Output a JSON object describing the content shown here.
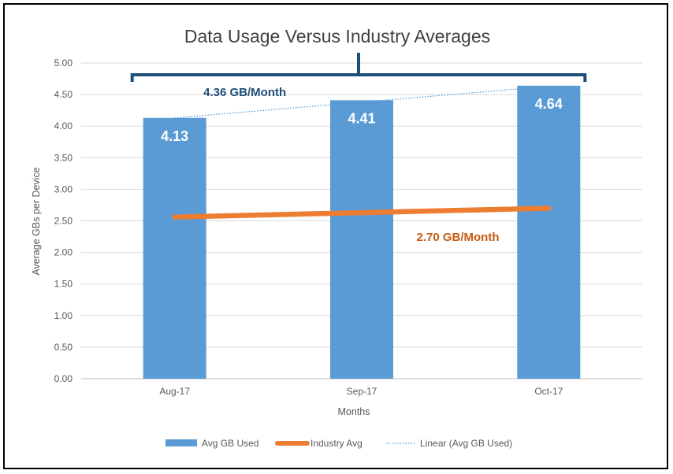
{
  "chart_data": {
    "type": "bar",
    "title": "Data Usage Versus Industry Averages",
    "xlabel": "Months",
    "ylabel": "Average GBs per Device",
    "categories": [
      "Aug-17",
      "Sep-17",
      "Oct-17"
    ],
    "ylim": [
      0,
      5
    ],
    "yticks": [
      "0.00",
      "0.50",
      "1.00",
      "1.50",
      "2.00",
      "2.50",
      "3.00",
      "3.50",
      "4.00",
      "4.50",
      "5.00"
    ],
    "grid": true,
    "legend_position": "bottom",
    "series": [
      {
        "name": "Avg GB Used",
        "type": "bar",
        "values": [
          4.13,
          4.41,
          4.64
        ],
        "data_labels": [
          "4.13",
          "4.41",
          "4.64"
        ],
        "color": "#5b9bd5"
      },
      {
        "name": "Industry Avg",
        "type": "line",
        "values": [
          2.56,
          2.63,
          2.7
        ],
        "color": "#ed7d31"
      },
      {
        "name": "Linear (Avg GB Used)",
        "type": "trendline",
        "values": [
          4.13,
          4.38,
          4.63
        ],
        "color": "#5b9bd5",
        "style": "dotted"
      }
    ],
    "annotations": [
      {
        "text": "4.36 GB/Month",
        "color": "#1f4e79",
        "anchor": "Avg GB Used"
      },
      {
        "text": "2.70 GB/Month",
        "color": "#c55a11",
        "anchor": "Industry Avg"
      }
    ],
    "brace_color": "#1f4e79"
  }
}
